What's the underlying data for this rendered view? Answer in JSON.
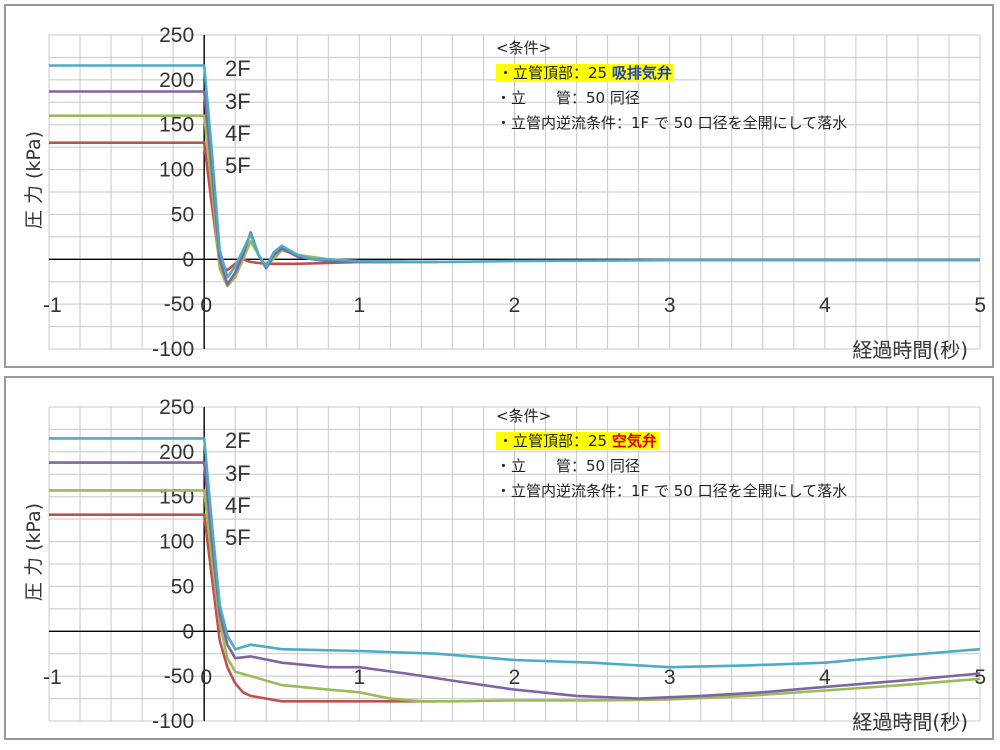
{
  "charts": [
    {
      "conditions": {
        "header": "<条件>",
        "line1_prefix": "・立管頂部：25 ",
        "line1_valve": "吸排気弁",
        "line2": "・立　　管：50 同径",
        "line3": "・立管内逆流条件：1F で 50 口径を全開にして落水"
      },
      "floor_labels": [
        "2F",
        "3F",
        "4F",
        "5F"
      ]
    },
    {
      "conditions": {
        "header": "<条件>",
        "line1_prefix": "・立管頂部：25 ",
        "line1_valve": "空気弁",
        "line2": "・立　　管：50 同径",
        "line3": "・立管内逆流条件：1F で 50 口径を全開にして落水"
      },
      "floor_labels": [
        "2F",
        "3F",
        "4F",
        "5F"
      ]
    }
  ],
  "colors": {
    "2F": "#4bacc6",
    "3F": "#8064a2",
    "4F": "#9bbb59",
    "5F": "#c0504d",
    "grid": "#c8c8c8",
    "axis": "#000000",
    "highlight": "#ffff00",
    "valve_top": "#1f3fbf",
    "valve_bottom": "#e00000"
  },
  "chart_data": [
    {
      "type": "line",
      "title": "",
      "xlabel": "経過時間(秒)",
      "ylabel": "圧 力 (kPa)",
      "xlim": [
        -1,
        5
      ],
      "ylim": [
        -100,
        250
      ],
      "x_ticks": [
        "-1",
        "0",
        "1",
        "2",
        "3",
        "4",
        "5"
      ],
      "y_ticks": [
        "250",
        "200",
        "150",
        "100",
        "50",
        "0",
        "-50",
        "-100"
      ],
      "grid": true,
      "series": [
        {
          "name": "2F",
          "x": [
            -1,
            0,
            0.05,
            0.1,
            0.15,
            0.2,
            0.25,
            0.3,
            0.35,
            0.4,
            0.45,
            0.5,
            0.6,
            0.7,
            0.8,
            1.0,
            1.5,
            2.0,
            3.0,
            4.0,
            5.0
          ],
          "y": [
            216,
            216,
            120,
            10,
            -20,
            -8,
            10,
            28,
            5,
            -8,
            8,
            15,
            5,
            0,
            0,
            -2,
            -3,
            -2,
            -1,
            -1,
            -1
          ]
        },
        {
          "name": "3F",
          "x": [
            -1,
            0,
            0.05,
            0.1,
            0.15,
            0.2,
            0.25,
            0.3,
            0.35,
            0.4,
            0.45,
            0.5,
            0.6,
            0.7,
            0.8,
            1.0,
            1.3,
            1.5
          ],
          "y": [
            187,
            187,
            100,
            0,
            -28,
            -15,
            5,
            30,
            5,
            -10,
            5,
            12,
            3,
            0,
            -2,
            -3,
            -3,
            -3
          ]
        },
        {
          "name": "4F",
          "x": [
            -1,
            0,
            0.05,
            0.1,
            0.15,
            0.2,
            0.25,
            0.3,
            0.35,
            0.4,
            0.5,
            0.6,
            0.8,
            1.0,
            1.5
          ],
          "y": [
            160,
            160,
            80,
            -10,
            -30,
            -20,
            0,
            20,
            5,
            -8,
            10,
            5,
            0,
            -3,
            -3
          ]
        },
        {
          "name": "5F",
          "x": [
            -1,
            0,
            0.05,
            0.1,
            0.15,
            0.2,
            0.25,
            0.3,
            0.4,
            0.6,
            0.8,
            1.0,
            1.2
          ],
          "y": [
            130,
            130,
            60,
            -5,
            -12,
            -5,
            0,
            -3,
            -5,
            -5,
            -4,
            -3,
            -3
          ]
        }
      ]
    },
    {
      "type": "line",
      "title": "",
      "xlabel": "経過時間(秒)",
      "ylabel": "圧 力 (kPa)",
      "xlim": [
        -1,
        5
      ],
      "ylim": [
        -100,
        250
      ],
      "x_ticks": [
        "-1",
        "0",
        "1",
        "2",
        "3",
        "4",
        "5"
      ],
      "y_ticks": [
        "250",
        "200",
        "150",
        "100",
        "50",
        "0",
        "-50",
        "-100"
      ],
      "grid": true,
      "series": [
        {
          "name": "2F",
          "x": [
            -1,
            0,
            0.05,
            0.1,
            0.15,
            0.2,
            0.3,
            0.5,
            1.0,
            1.5,
            2.0,
            2.5,
            3.0,
            3.5,
            4.0,
            4.5,
            5.0
          ],
          "y": [
            215,
            215,
            120,
            30,
            -5,
            -20,
            -15,
            -20,
            -22,
            -25,
            -32,
            -35,
            -40,
            -38,
            -35,
            -27,
            -20
          ]
        },
        {
          "name": "3F",
          "x": [
            -1,
            0,
            0.05,
            0.1,
            0.15,
            0.2,
            0.3,
            0.5,
            0.8,
            1.0,
            1.3,
            1.6,
            2.0,
            2.4,
            2.8,
            3.2,
            3.6,
            4.0,
            4.5,
            5.0
          ],
          "y": [
            188,
            188,
            100,
            20,
            -15,
            -30,
            -28,
            -35,
            -40,
            -40,
            -47,
            -55,
            -65,
            -72,
            -75,
            -72,
            -68,
            -62,
            -55,
            -47
          ]
        },
        {
          "name": "4F",
          "x": [
            -1,
            0,
            0.05,
            0.1,
            0.15,
            0.2,
            0.3,
            0.5,
            0.8,
            1.0,
            1.2,
            1.4,
            1.6,
            2.0,
            2.5,
            3.0,
            3.5,
            4.0,
            4.5,
            5.0
          ],
          "y": [
            157,
            157,
            80,
            10,
            -30,
            -45,
            -50,
            -60,
            -65,
            -68,
            -75,
            -78,
            -78,
            -77,
            -77,
            -76,
            -72,
            -66,
            -60,
            -53
          ]
        },
        {
          "name": "5F",
          "x": [
            -1,
            0,
            0.05,
            0.1,
            0.15,
            0.2,
            0.25,
            0.3,
            0.4,
            0.5,
            0.7,
            1.0,
            1.2,
            1.5
          ],
          "y": [
            130,
            130,
            60,
            -10,
            -40,
            -58,
            -68,
            -72,
            -75,
            -78,
            -78,
            -78,
            -78,
            -78
          ]
        }
      ]
    }
  ]
}
